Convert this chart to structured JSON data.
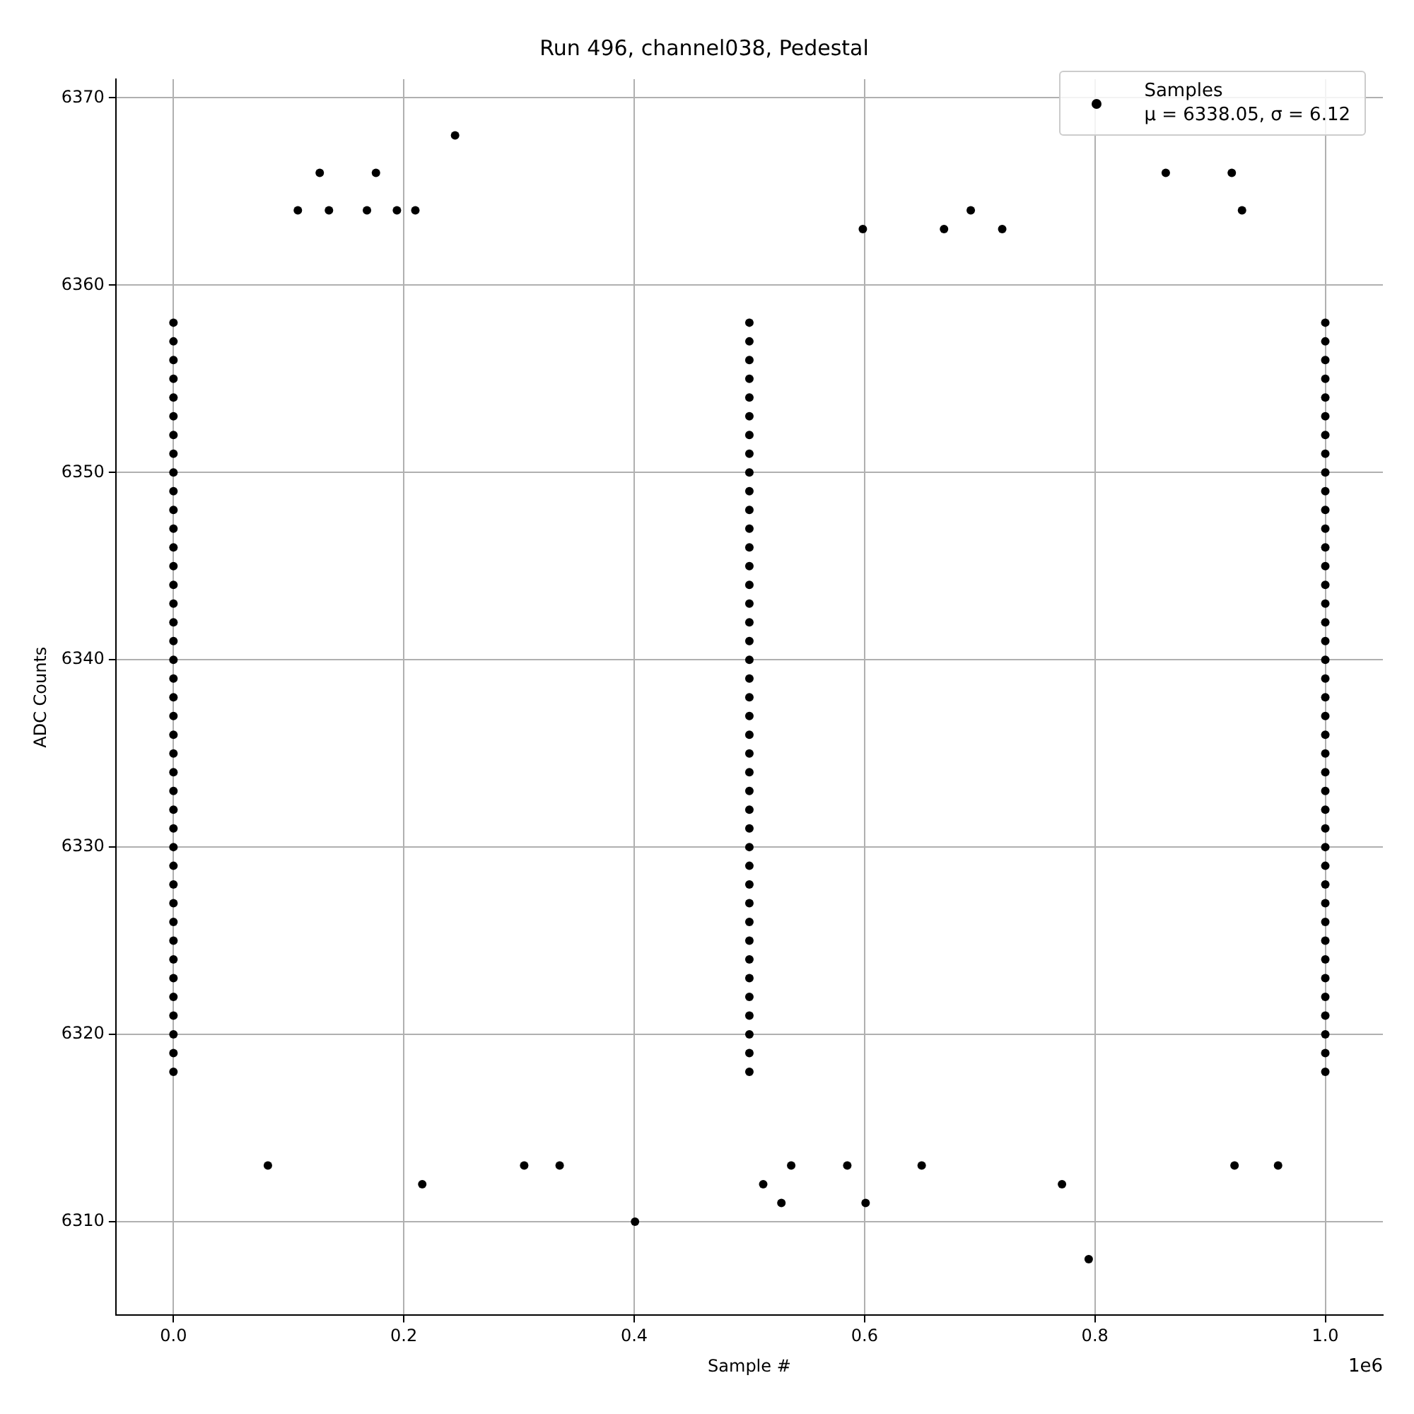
{
  "chart_data": {
    "type": "scatter",
    "title": "Run 496, channel038, Pedestal",
    "xlabel": "Sample #",
    "ylabel": "ADC Counts",
    "annotations": [
      "1e6"
    ],
    "xlim": [
      -0.05,
      1.05
    ],
    "xticks": [
      {
        "value": 0,
        "label": "0.0"
      },
      {
        "value": 0.2,
        "label": "0.2"
      },
      {
        "value": 0.4,
        "label": "0.4"
      },
      {
        "value": 0.6,
        "label": "0.6"
      },
      {
        "value": 0.8,
        "label": "0.8"
      },
      {
        "value": 1,
        "label": "1.0"
      }
    ],
    "ylim": [
      6305,
      6371
    ],
    "yticks": [
      6310,
      6320,
      6330,
      6340,
      6350,
      6360,
      6370
    ],
    "grid": true,
    "legend": "top right",
    "marker": "circle",
    "series": [
      {
        "name": "Samples\nμ = 6338.05, σ = 6.12",
        "color": "#000000",
        "x": [
          0,
          0.5,
          1,
          0,
          0.5,
          1,
          0,
          0.5,
          1,
          0,
          0.5,
          1,
          0,
          0.5,
          1,
          0,
          0.5,
          1,
          0,
          0.5,
          1,
          0,
          0.5,
          1,
          0,
          0.5,
          1,
          0,
          0.5,
          1,
          0,
          0.5,
          1,
          0,
          0.5,
          1,
          0,
          0.5,
          1,
          0,
          0.5,
          1,
          0,
          0.5,
          1,
          0,
          0.5,
          1,
          0,
          0.5,
          1,
          0,
          0.5,
          1,
          0,
          0.5,
          1,
          0,
          0.5,
          1,
          0,
          0.5,
          1,
          0,
          0.5,
          1,
          0,
          0.5,
          1,
          0,
          0.5,
          1,
          0,
          0.5,
          1,
          0,
          0.5,
          1,
          0,
          0.5,
          1,
          0,
          0.5,
          1,
          0,
          0.5,
          1,
          0,
          0.5,
          1,
          0,
          0.5,
          1,
          0,
          0.5,
          1,
          0,
          0.5,
          1,
          0,
          0.5,
          1,
          0,
          0.5,
          1,
          0,
          0.5,
          1,
          0,
          0.5,
          1,
          0,
          0.5,
          1,
          0,
          0.5,
          1,
          0,
          0.5,
          1,
          0,
          0.5,
          1,
          0.2445,
          0.127,
          0.1758,
          0.108,
          0.135,
          0.168,
          0.194,
          0.21,
          0.8615,
          0.9188,
          0.6922,
          0.9277,
          0.5985,
          0.669,
          0.7195,
          0.4007,
          0.216,
          0.082,
          0.3045,
          0.3353,
          0.7946,
          0.5278,
          0.6009,
          0.512,
          0.7714,
          0.5363,
          0.585,
          0.6496,
          0.9212,
          0.959
        ],
        "values": [
          6318,
          6318,
          6318,
          6319,
          6319,
          6319,
          6320,
          6320,
          6320,
          6321,
          6321,
          6321,
          6322,
          6322,
          6322,
          6323,
          6323,
          6323,
          6324,
          6324,
          6324,
          6325,
          6325,
          6325,
          6326,
          6326,
          6326,
          6327,
          6327,
          6327,
          6328,
          6328,
          6328,
          6329,
          6329,
          6329,
          6330,
          6330,
          6330,
          6331,
          6331,
          6331,
          6332,
          6332,
          6332,
          6333,
          6333,
          6333,
          6334,
          6334,
          6334,
          6335,
          6335,
          6335,
          6336,
          6336,
          6336,
          6337,
          6337,
          6337,
          6338,
          6338,
          6338,
          6339,
          6339,
          6339,
          6340,
          6340,
          6340,
          6341,
          6341,
          6341,
          6342,
          6342,
          6342,
          6343,
          6343,
          6343,
          6344,
          6344,
          6344,
          6345,
          6345,
          6345,
          6346,
          6346,
          6346,
          6347,
          6347,
          6347,
          6348,
          6348,
          6348,
          6349,
          6349,
          6349,
          6350,
          6350,
          6350,
          6351,
          6351,
          6351,
          6352,
          6352,
          6352,
          6353,
          6353,
          6353,
          6354,
          6354,
          6354,
          6355,
          6355,
          6355,
          6356,
          6356,
          6356,
          6357,
          6357,
          6357,
          6358,
          6358,
          6358,
          6368,
          6366,
          6366,
          6364,
          6364,
          6364,
          6364,
          6364,
          6366,
          6366,
          6364,
          6364,
          6363,
          6363,
          6363,
          6310,
          6312,
          6313,
          6313,
          6313,
          6308,
          6311,
          6311,
          6312,
          6312,
          6313,
          6313,
          6313,
          6313,
          6313
        ]
      }
    ]
  }
}
